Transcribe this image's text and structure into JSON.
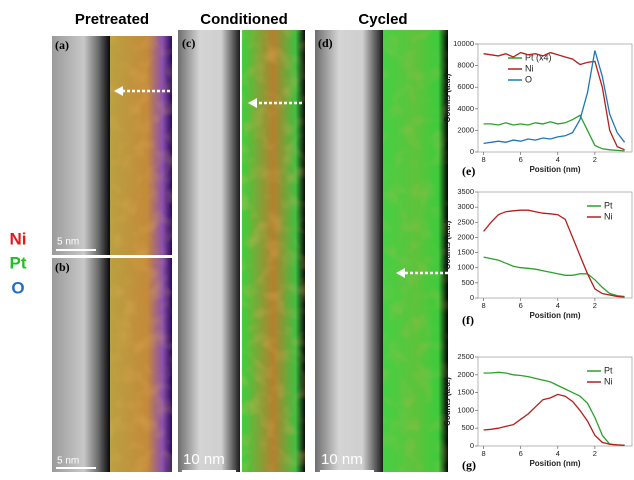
{
  "header": {
    "columns": [
      "Pretreated",
      "Conditioned",
      "Cycled"
    ]
  },
  "panels": [
    "(a)",
    "(b)",
    "(c)",
    "(d)",
    "(e)",
    "(f)",
    "(g)"
  ],
  "elements": [
    {
      "label": "Ni",
      "color": "#e01b1b"
    },
    {
      "label": "Pt",
      "color": "#21c021"
    },
    {
      "label": "O",
      "color": "#1f6fc8"
    }
  ],
  "scale_bars": [
    "5 nm",
    "5 nm",
    "10 nm",
    "10 nm"
  ],
  "chart_data": [
    {
      "type": "line",
      "x_label": "Position (nm)",
      "y_label": "Counts (a.u.)",
      "legend": "upper left",
      "x": [
        8,
        7.6,
        7.2,
        6.8,
        6.4,
        6,
        5.6,
        5.2,
        4.8,
        4.4,
        4,
        3.6,
        3.2,
        2.8,
        2.4,
        2,
        1.6,
        1.2,
        0.8,
        0.4
      ],
      "series": [
        {
          "name": "Pt (x4)",
          "color": "#2ca02c",
          "values": [
            2600,
            2600,
            2500,
            2700,
            2500,
            2600,
            2500,
            2700,
            2600,
            2800,
            2600,
            2700,
            3000,
            3400,
            2000,
            600,
            300,
            200,
            150,
            100
          ]
        },
        {
          "name": "Ni",
          "color": "#b3201c",
          "values": [
            9100,
            9000,
            8900,
            9100,
            8800,
            9200,
            9000,
            9100,
            8900,
            9200,
            9000,
            8800,
            8600,
            8100,
            8300,
            8400,
            6000,
            2000,
            500,
            200
          ]
        },
        {
          "name": "O",
          "color": "#1f77b4",
          "values": [
            800,
            900,
            1000,
            900,
            1100,
            1000,
            1200,
            1100,
            1300,
            1200,
            1400,
            1500,
            1800,
            3000,
            5500,
            9400,
            7000,
            3500,
            1800,
            900
          ]
        }
      ],
      "xlim": [
        8.3,
        0
      ],
      "xticks": [
        8,
        6,
        4,
        2
      ],
      "ylim": [
        0,
        10000
      ],
      "yticks": [
        0,
        2000,
        4000,
        6000,
        8000,
        10000
      ]
    },
    {
      "type": "line",
      "x_label": "Position (nm)",
      "y_label": "Counts (a.u.)",
      "legend": "upper right",
      "x": [
        8,
        7.6,
        7.2,
        6.8,
        6.4,
        6,
        5.6,
        5.2,
        4.8,
        4.4,
        4,
        3.6,
        3.2,
        2.8,
        2.4,
        2,
        1.6,
        1.2,
        0.8,
        0.4
      ],
      "series": [
        {
          "name": "Pt",
          "color": "#2ca02c",
          "values": [
            1350,
            1300,
            1250,
            1150,
            1050,
            1000,
            980,
            950,
            900,
            850,
            800,
            750,
            750,
            800,
            800,
            600,
            350,
            150,
            80,
            50
          ]
        },
        {
          "name": "Ni",
          "color": "#b3201c",
          "values": [
            2200,
            2500,
            2750,
            2850,
            2880,
            2900,
            2900,
            2850,
            2800,
            2780,
            2750,
            2600,
            2000,
            1400,
            800,
            300,
            150,
            100,
            50,
            30
          ]
        }
      ],
      "xlim": [
        8.3,
        0
      ],
      "xticks": [
        8,
        6,
        4,
        2
      ],
      "ylim": [
        0,
        3500
      ],
      "yticks": [
        0,
        500,
        1000,
        1500,
        2000,
        2500,
        3000,
        3500
      ]
    },
    {
      "type": "line",
      "x_label": "Position (nm)",
      "y_label": "Counts (a.u.)",
      "legend": "upper right",
      "x": [
        8,
        7.6,
        7.2,
        6.8,
        6.4,
        6,
        5.6,
        5.2,
        4.8,
        4.4,
        4,
        3.6,
        3.2,
        2.8,
        2.4,
        2,
        1.6,
        1.2,
        0.8,
        0.4
      ],
      "series": [
        {
          "name": "Pt",
          "color": "#2ca02c",
          "values": [
            2050,
            2050,
            2070,
            2050,
            2000,
            1980,
            1950,
            1900,
            1850,
            1800,
            1700,
            1600,
            1500,
            1400,
            1200,
            800,
            300,
            50,
            30,
            20
          ]
        },
        {
          "name": "Ni",
          "color": "#b3201c",
          "values": [
            450,
            470,
            500,
            550,
            600,
            750,
            900,
            1100,
            1300,
            1350,
            1450,
            1400,
            1250,
            1000,
            700,
            300,
            100,
            50,
            30,
            20
          ]
        }
      ],
      "xlim": [
        8.3,
        0
      ],
      "xticks": [
        8,
        6,
        4,
        2
      ],
      "ylim": [
        0,
        2500
      ],
      "yticks": [
        0,
        500,
        1000,
        1500,
        2000,
        2500
      ]
    }
  ]
}
